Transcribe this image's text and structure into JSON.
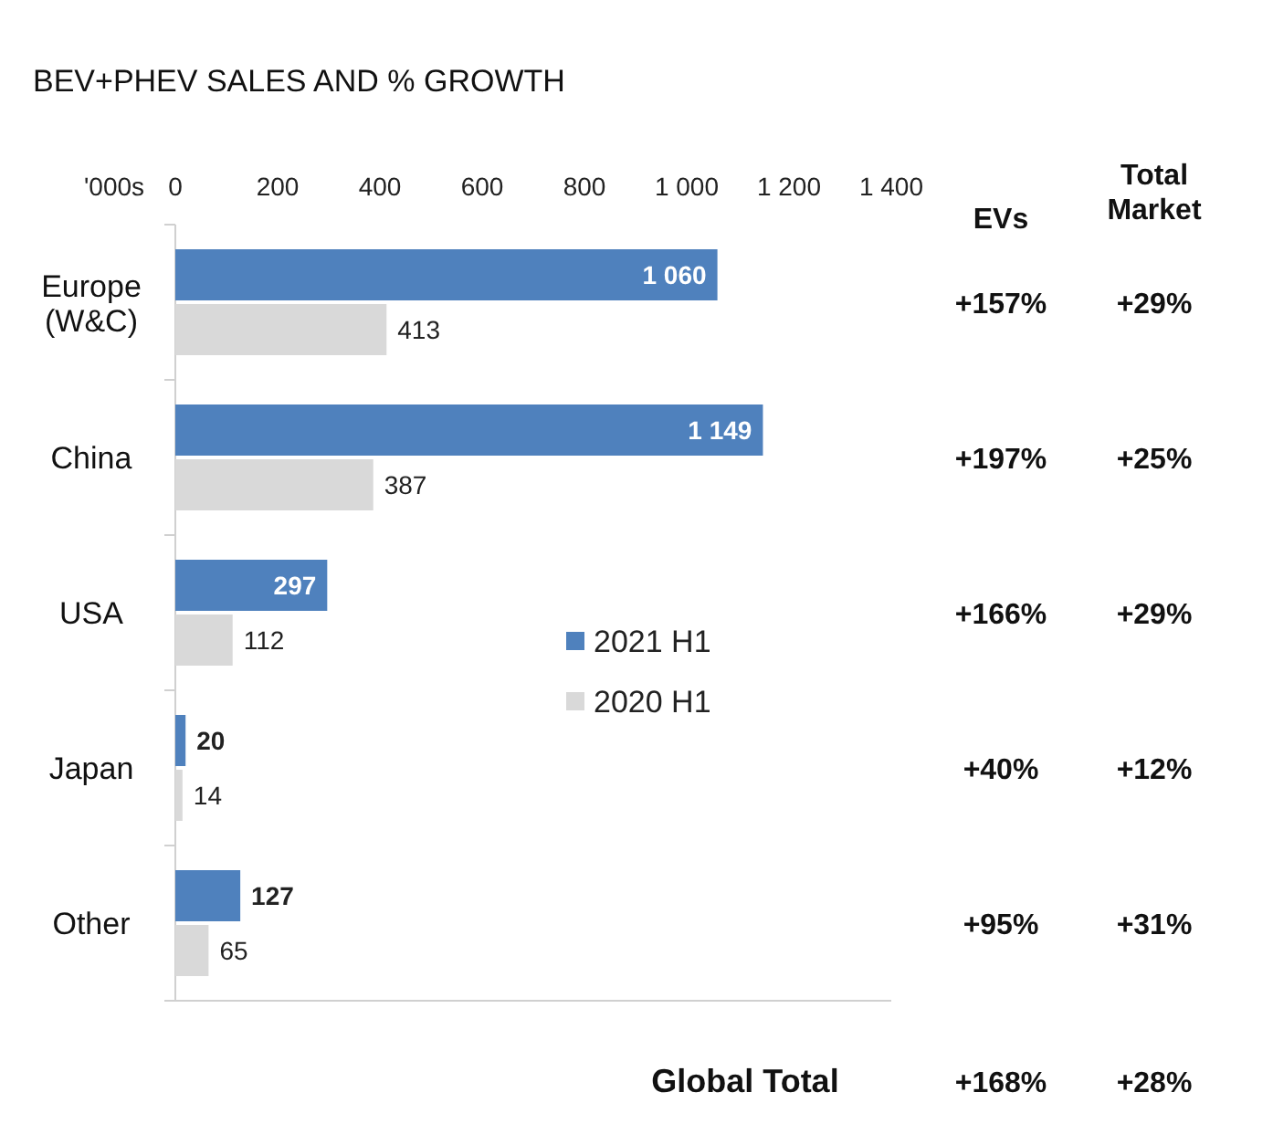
{
  "chart_data": {
    "type": "bar",
    "orientation": "horizontal",
    "title": "BEV+PHEV SALES AND % GROWTH",
    "xlabel": "'000s",
    "categories": [
      "Europe (W&C)",
      "China",
      "USA",
      "Japan",
      "Other"
    ],
    "series": [
      {
        "name": "2021 H1",
        "color": "#4f81bd",
        "values": [
          1060,
          1149,
          297,
          20,
          127
        ],
        "value_labels": [
          "1 060",
          "1 149",
          "297",
          "20",
          "127"
        ]
      },
      {
        "name": "2020 H1",
        "color": "#d9d9d9",
        "values": [
          413,
          387,
          112,
          14,
          65
        ],
        "value_labels": [
          "413",
          "387",
          "112",
          "14",
          "65"
        ]
      }
    ],
    "xlim": [
      0,
      1400
    ],
    "xticks": [
      0,
      200,
      400,
      600,
      800,
      {
        "value": 1000,
        "label": "1 000"
      },
      {
        "value": 1200,
        "label": "1 200"
      },
      {
        "value": 1400,
        "label": "1 400"
      }
    ],
    "legend": "right",
    "grid": false,
    "annotations": [
      "EVs",
      "Total Market",
      "+157%",
      "+29%",
      "+197%",
      "+25%",
      "+166%",
      "+29%",
      "+40%",
      "+12%",
      "+95%",
      "+31%",
      "Global Total",
      "+168%",
      "+28%"
    ]
  }
}
